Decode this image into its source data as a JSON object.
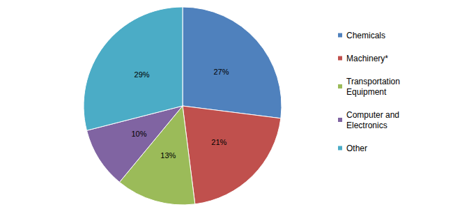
{
  "chart_data": {
    "type": "pie",
    "categories": [
      "Chemicals",
      "Machinery*",
      "Transportation Equipment",
      "Computer and Electronics",
      "Other"
    ],
    "values": [
      27,
      21,
      13,
      10,
      29
    ],
    "value_labels": [
      "27%",
      "21%",
      "13%",
      "10%",
      "29%"
    ],
    "colors": [
      "#4f81bd",
      "#c0504d",
      "#9bbb59",
      "#8064a2",
      "#4bacc6"
    ],
    "data_labels": true,
    "legend": "right"
  }
}
